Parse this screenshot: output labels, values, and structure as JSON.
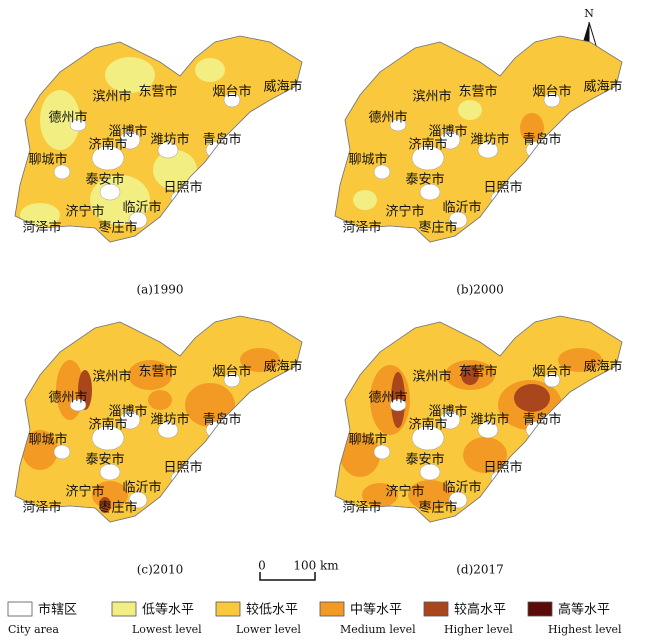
{
  "north": "N",
  "cities": [
    "滨州市",
    "东营市",
    "烟台市",
    "威海市",
    "德州市",
    "淄博市",
    "潍坊市",
    "青岛市",
    "济南市",
    "聊城市",
    "泰安市",
    "日照市",
    "济宁市",
    "临沂市",
    "菏泽市",
    "枣庄市"
  ],
  "panels": [
    {
      "label": "(a)1990"
    },
    {
      "label": "(b)2000"
    },
    {
      "label": "(c)2010"
    },
    {
      "label": "(d)2017"
    }
  ],
  "scale": {
    "zero": "0",
    "distance": "100 km"
  },
  "legend": [
    {
      "zh": "市辖区",
      "en": "City area",
      "color": "#ffffff"
    },
    {
      "zh": "低等水平",
      "en": "Lowest level",
      "color": "#f2ee82"
    },
    {
      "zh": "较低水平",
      "en": "Lower level",
      "color": "#f9c83c"
    },
    {
      "zh": "中等水平",
      "en": "Medium level",
      "color": "#f39a24"
    },
    {
      "zh": "较高水平",
      "en": "Higher level",
      "color": "#a9461c"
    },
    {
      "zh": "高等水平",
      "en": "Highest level",
      "color": "#5a0a08"
    }
  ]
}
